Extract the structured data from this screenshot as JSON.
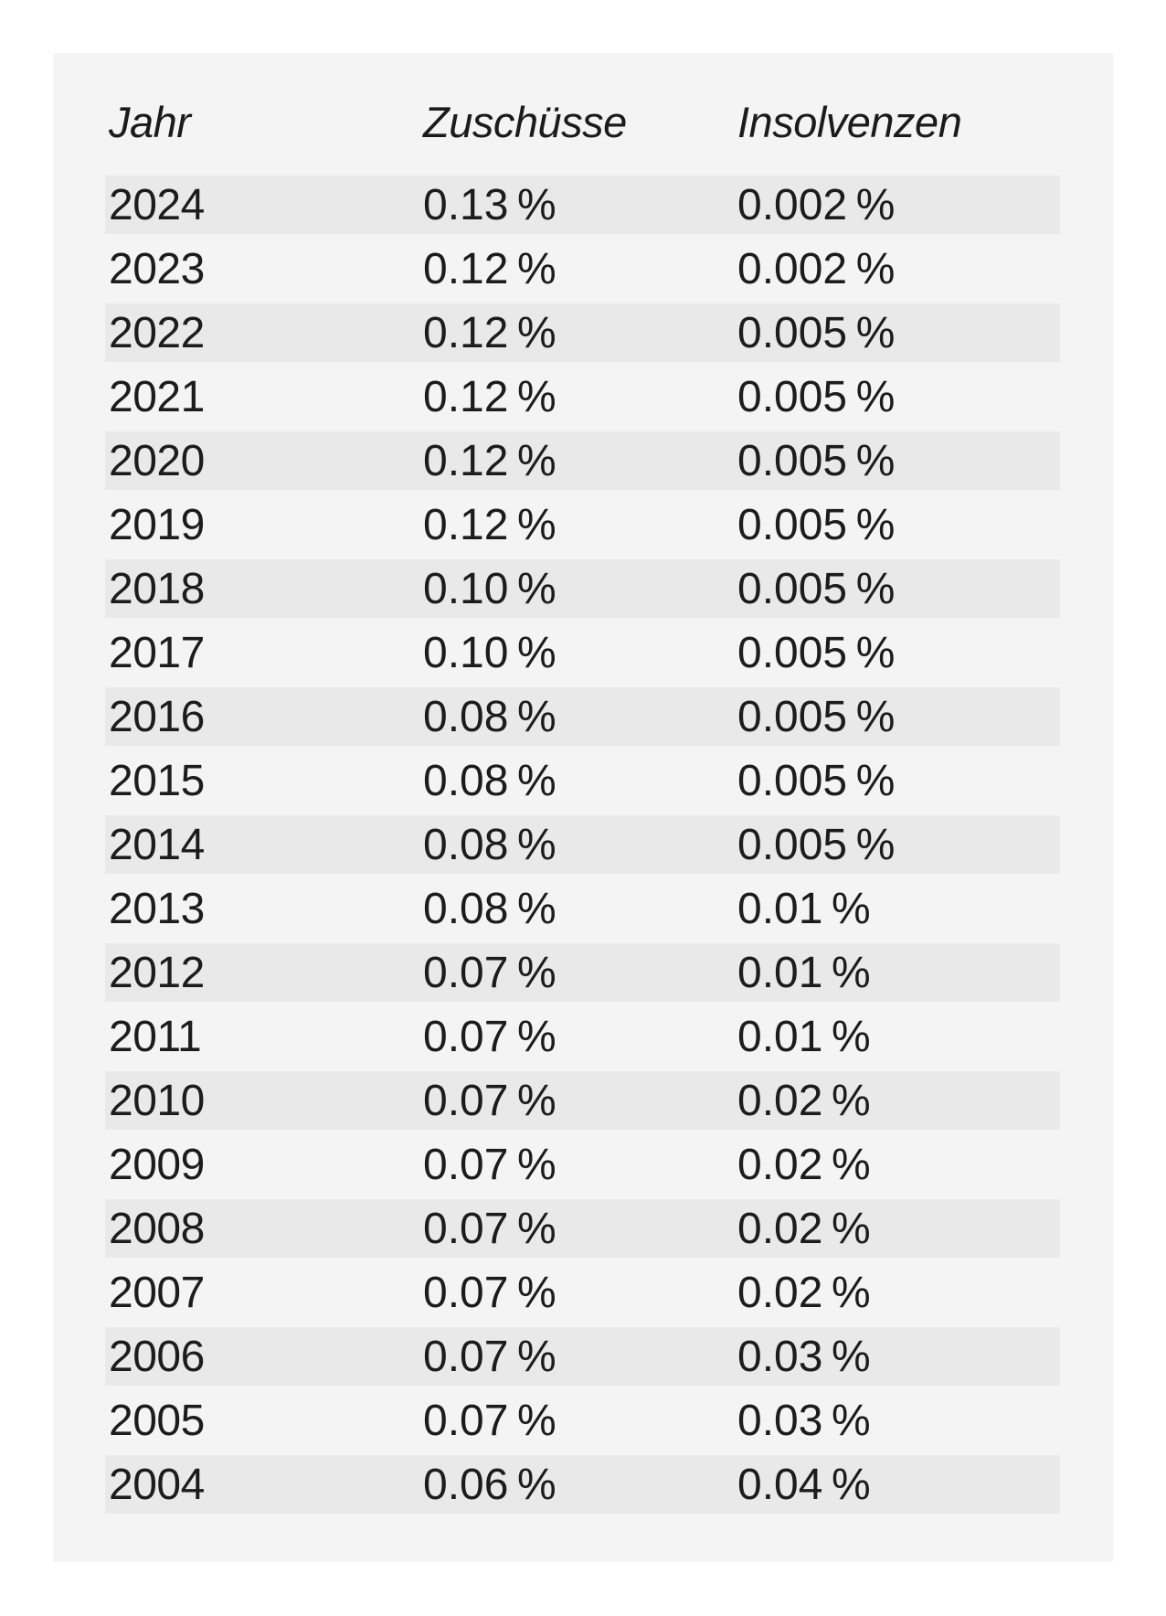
{
  "table": {
    "columns": [
      "Jahr",
      "Zuschüsse",
      "Insolvenzen"
    ],
    "rows": [
      [
        "2024",
        "0.13 %",
        "0.002 %"
      ],
      [
        "2023",
        "0.12 %",
        "0.002 %"
      ],
      [
        "2022",
        "0.12 %",
        "0.005 %"
      ],
      [
        "2021",
        "0.12 %",
        "0.005 %"
      ],
      [
        "2020",
        "0.12 %",
        "0.005 %"
      ],
      [
        "2019",
        "0.12 %",
        "0.005 %"
      ],
      [
        "2018",
        "0.10 %",
        "0.005 %"
      ],
      [
        "2017",
        "0.10 %",
        "0.005 %"
      ],
      [
        "2016",
        "0.08 %",
        "0.005 %"
      ],
      [
        "2015",
        "0.08 %",
        "0.005 %"
      ],
      [
        "2014",
        "0.08 %",
        "0.005 %"
      ],
      [
        "2013",
        "0.08 %",
        "0.01 %"
      ],
      [
        "2012",
        "0.07 %",
        "0.01 %"
      ],
      [
        "2011",
        "0.07 %",
        "0.01 %"
      ],
      [
        "2010",
        "0.07 %",
        "0.02 %"
      ],
      [
        "2009",
        "0.07 %",
        "0.02 %"
      ],
      [
        "2008",
        "0.07 %",
        "0.02 %"
      ],
      [
        "2007",
        "0.07 %",
        "0.02 %"
      ],
      [
        "2006",
        "0.07 %",
        "0.03 %"
      ],
      [
        "2005",
        "0.07 %",
        "0.03 %"
      ],
      [
        "2004",
        "0.06 %",
        "0.04 %"
      ]
    ]
  },
  "chart_data": {
    "type": "table",
    "title": "",
    "columns": [
      "Jahr",
      "Zuschüsse",
      "Insolvenzen"
    ],
    "categories": [
      2024,
      2023,
      2022,
      2021,
      2020,
      2019,
      2018,
      2017,
      2016,
      2015,
      2014,
      2013,
      2012,
      2011,
      2010,
      2009,
      2008,
      2007,
      2006,
      2005,
      2004
    ],
    "series": [
      {
        "name": "Zuschüsse",
        "unit": "%",
        "values": [
          0.13,
          0.12,
          0.12,
          0.12,
          0.12,
          0.12,
          0.1,
          0.1,
          0.08,
          0.08,
          0.08,
          0.08,
          0.07,
          0.07,
          0.07,
          0.07,
          0.07,
          0.07,
          0.07,
          0.07,
          0.06
        ]
      },
      {
        "name": "Insolvenzen",
        "unit": "%",
        "values": [
          0.002,
          0.002,
          0.005,
          0.005,
          0.005,
          0.005,
          0.005,
          0.005,
          0.005,
          0.005,
          0.005,
          0.01,
          0.01,
          0.01,
          0.02,
          0.02,
          0.02,
          0.02,
          0.03,
          0.03,
          0.04
        ]
      }
    ],
    "layout": {
      "striped_rows": true,
      "stripe_color": "#e9e9e9",
      "card_color": "#f4f4f4",
      "page_color": "#ffffff",
      "text_color": "#1c1c1c",
      "header_style": "italic"
    }
  }
}
